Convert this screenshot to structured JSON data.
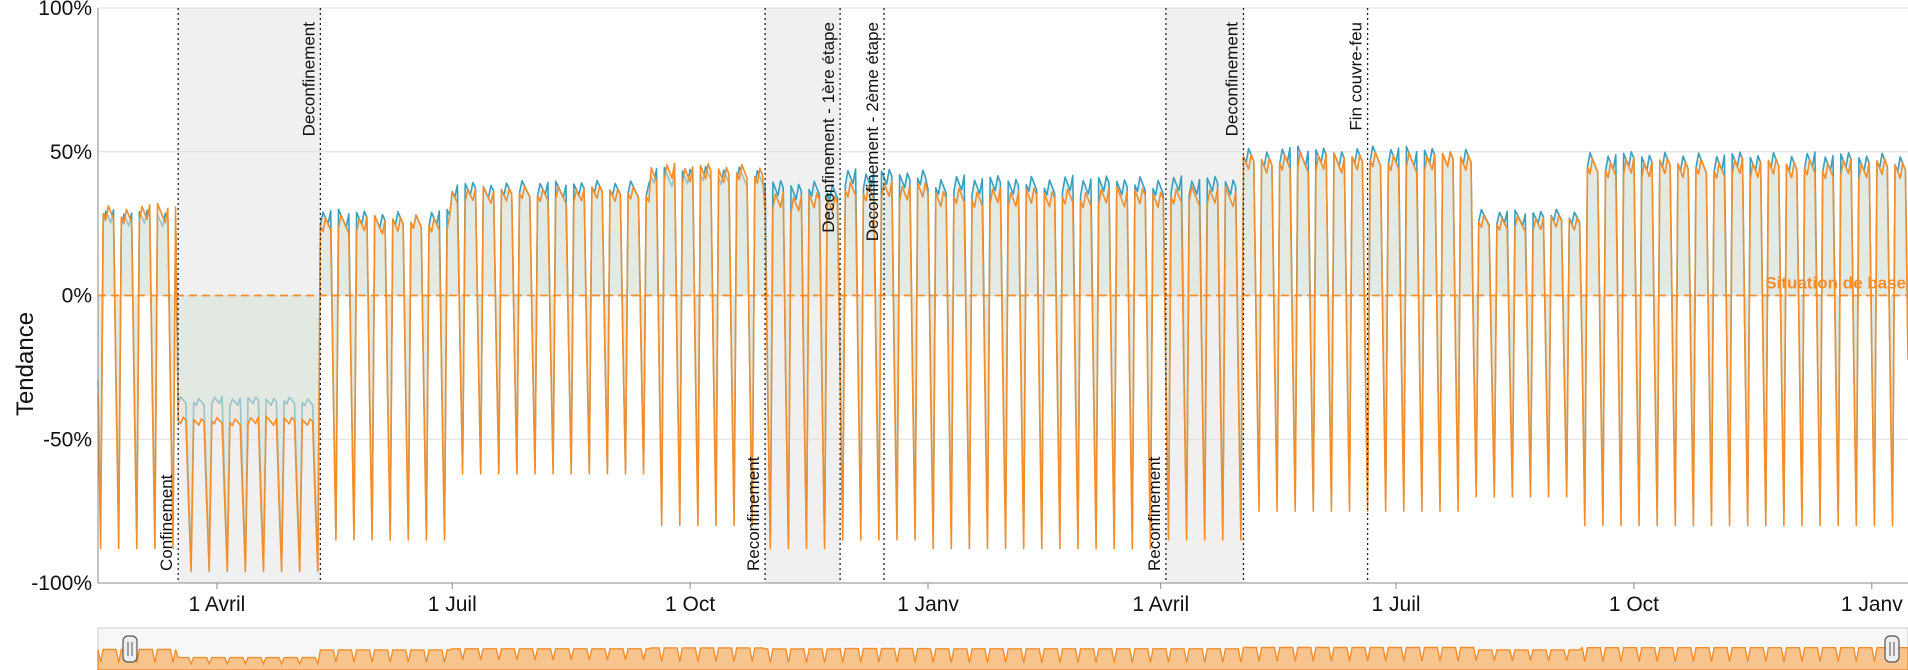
{
  "chart_data": {
    "type": "line",
    "title": "",
    "ylabel": "Tendance",
    "ylim": [
      -100,
      100
    ],
    "y_ticks": [
      {
        "value": 100,
        "label": "100%"
      },
      {
        "value": 50,
        "label": "50%"
      },
      {
        "value": 0,
        "label": "0%"
      },
      {
        "value": -50,
        "label": "-50%"
      },
      {
        "value": -100,
        "label": "-100%"
      }
    ],
    "x_range": [
      "2020-02-15",
      "2022-01-15"
    ],
    "x_ticks": [
      {
        "date": "2020-04-01",
        "label": "1 Avril"
      },
      {
        "date": "2020-07-01",
        "label": "1 Juil"
      },
      {
        "date": "2020-10-01",
        "label": "1 Oct"
      },
      {
        "date": "2021-01-01",
        "label": "1 Janv"
      },
      {
        "date": "2021-04-01",
        "label": "1 Avril"
      },
      {
        "date": "2021-07-01",
        "label": "1 Juil"
      },
      {
        "date": "2021-10-01",
        "label": "1 Oct"
      },
      {
        "date": "2022-01-01",
        "label": "1 Janv"
      }
    ],
    "grid": true,
    "baseline": {
      "value": 0,
      "label": "Situation de base",
      "color": "#f28e2b"
    },
    "shaded_periods": [
      {
        "start": "2020-03-17",
        "end": "2020-05-11"
      },
      {
        "start": "2020-10-30",
        "end": "2020-11-28"
      },
      {
        "start": "2021-04-03",
        "end": "2021-05-03"
      }
    ],
    "events": [
      {
        "date": "2020-03-17",
        "label": "Confinement",
        "position": "bottom"
      },
      {
        "date": "2020-05-11",
        "label": "Deconfinement",
        "position": "top"
      },
      {
        "date": "2020-10-30",
        "label": "Reconfinement",
        "position": "bottom"
      },
      {
        "date": "2020-11-28",
        "label": "Deconfinement - 1ère étape",
        "position": "top"
      },
      {
        "date": "2020-12-15",
        "label": "Deconfinement - 2ème étape",
        "position": "top"
      },
      {
        "date": "2021-04-03",
        "label": "Reconfinement",
        "position": "bottom"
      },
      {
        "date": "2021-05-03",
        "label": "Deconfinement",
        "position": "top"
      },
      {
        "date": "2021-06-20",
        "label": "Fin couvre-feu",
        "position": "top"
      }
    ],
    "series": [
      {
        "color": "#3a9fbf",
        "fill": "#d9eef4",
        "values": [
          {
            "start": "2020-02-15",
            "end": "2020-03-16",
            "peak": 30,
            "trough": -78
          },
          {
            "start": "2020-03-17",
            "end": "2020-05-10",
            "peak": -35,
            "trough": -92
          },
          {
            "start": "2020-05-11",
            "end": "2020-06-30",
            "peak": 30,
            "trough": -82
          },
          {
            "start": "2020-07-01",
            "end": "2020-09-15",
            "peak": 40,
            "trough": -60
          },
          {
            "start": "2020-09-16",
            "end": "2020-10-29",
            "peak": 45,
            "trough": -75
          },
          {
            "start": "2020-10-30",
            "end": "2020-11-27",
            "peak": 40,
            "trough": -85
          },
          {
            "start": "2020-11-28",
            "end": "2020-12-31",
            "peak": 44,
            "trough": -78
          },
          {
            "start": "2021-01-01",
            "end": "2021-04-02",
            "peak": 42,
            "trough": -82
          },
          {
            "start": "2021-04-03",
            "end": "2021-05-02",
            "peak": 42,
            "trough": -80
          },
          {
            "start": "2021-05-03",
            "end": "2021-07-31",
            "peak": 52,
            "trough": -70
          },
          {
            "start": "2021-08-01",
            "end": "2021-09-10",
            "peak": 30,
            "trough": -65
          },
          {
            "start": "2021-09-11",
            "end": "2022-01-15",
            "peak": 50,
            "trough": -75
          }
        ]
      },
      {
        "color": "#f28e2b",
        "fill": "#e6e1d3",
        "values": [
          {
            "start": "2020-02-15",
            "end": "2020-03-16",
            "peak": 32,
            "trough": -88
          },
          {
            "start": "2020-03-17",
            "end": "2020-05-10",
            "peak": -42,
            "trough": -96
          },
          {
            "start": "2020-05-11",
            "end": "2020-06-30",
            "peak": 28,
            "trough": -85
          },
          {
            "start": "2020-07-01",
            "end": "2020-09-15",
            "peak": 38,
            "trough": -62
          },
          {
            "start": "2020-09-16",
            "end": "2020-10-29",
            "peak": 46,
            "trough": -80
          },
          {
            "start": "2020-10-30",
            "end": "2020-11-27",
            "peak": 36,
            "trough": -88
          },
          {
            "start": "2020-11-28",
            "end": "2020-12-31",
            "peak": 40,
            "trough": -85
          },
          {
            "start": "2021-01-01",
            "end": "2021-04-02",
            "peak": 38,
            "trough": -88
          },
          {
            "start": "2021-04-03",
            "end": "2021-05-02",
            "peak": 38,
            "trough": -85
          },
          {
            "start": "2021-05-03",
            "end": "2021-07-31",
            "peak": 50,
            "trough": -75
          },
          {
            "start": "2021-08-01",
            "end": "2021-09-10",
            "peak": 28,
            "trough": -70
          },
          {
            "start": "2021-09-11",
            "end": "2022-01-15",
            "peak": 48,
            "trough": -80
          }
        ]
      }
    ]
  }
}
